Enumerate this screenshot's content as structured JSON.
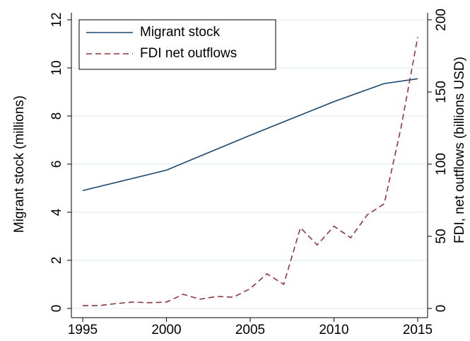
{
  "chart_data": {
    "type": "line",
    "y_label": "Migrant stock (millions)",
    "y2_label": "FDI, net outflows (billions USD)",
    "xlim": [
      1995,
      2015
    ],
    "xticks": [
      1995,
      2000,
      2005,
      2010,
      2015
    ],
    "ylim": [
      0,
      12
    ],
    "yticks": [
      0,
      2,
      4,
      6,
      8,
      10,
      12
    ],
    "y2lim": [
      0,
      200
    ],
    "y2ticks": [
      0,
      50,
      100,
      150,
      200
    ],
    "grid": true,
    "legend": "top-left",
    "series": [
      {
        "name": "Migrant stock",
        "color": "#1a476f",
        "dash": false,
        "x": [
          1995,
          2000,
          2005,
          2010,
          2013,
          2015
        ],
        "values": [
          4.9,
          5.75,
          7.2,
          8.6,
          9.35,
          9.55
        ]
      },
      {
        "name": "FDI net outflows",
        "color": "#90353b",
        "dash": true,
        "axis": "y2",
        "x": [
          1995,
          1996,
          1997,
          1998,
          1999,
          2000,
          2001,
          2002,
          2003,
          2004,
          2005,
          2006,
          2007,
          2008,
          2009,
          2010,
          2011,
          2012,
          2013,
          2014,
          2015
        ],
        "values": [
          2,
          2,
          3.4,
          4.4,
          4,
          4.4,
          9.8,
          6.4,
          8.3,
          7.8,
          13.7,
          24,
          16.7,
          56,
          44,
          57,
          49,
          65,
          72.5,
          125,
          188
        ]
      }
    ]
  }
}
